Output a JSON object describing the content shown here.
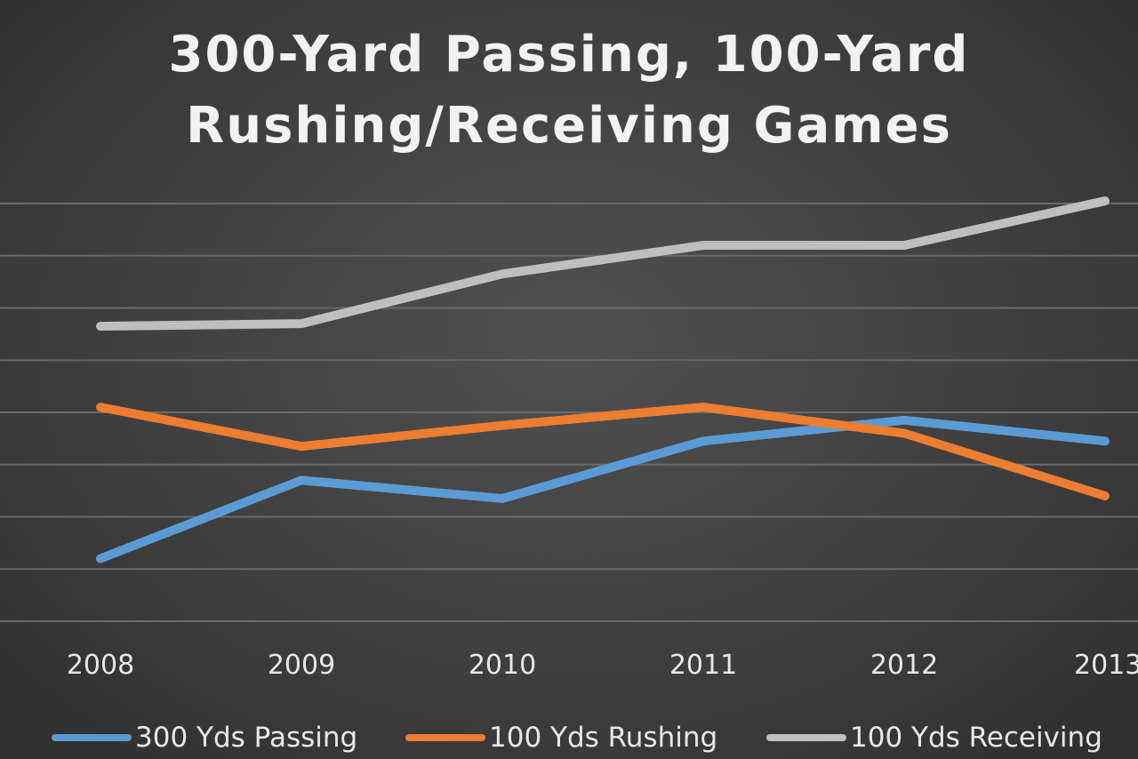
{
  "chart_data": {
    "type": "line",
    "title_lines": [
      "300-Yard Passing, 100-Yard",
      "Rushing/Receiving Games"
    ],
    "categories": [
      "2008",
      "2009",
      "2010",
      "2011",
      "2012",
      "2013"
    ],
    "ylim": [
      0,
      8
    ],
    "grid": true,
    "legend_position": "bottom",
    "series": [
      {
        "name": "300 Yds Passing",
        "color": "#5b9bd5",
        "values": [
          1.2,
          2.7,
          2.35,
          3.45,
          3.85,
          3.45
        ]
      },
      {
        "name": "100 Yds Rushing",
        "color": "#ed7d31",
        "values": [
          4.1,
          3.35,
          3.75,
          4.1,
          3.6,
          2.4
        ]
      },
      {
        "name": "100 Yds Receiving",
        "color": "#bfbfbf",
        "values": [
          5.65,
          5.7,
          6.65,
          7.2,
          7.2,
          8.05
        ]
      }
    ]
  }
}
